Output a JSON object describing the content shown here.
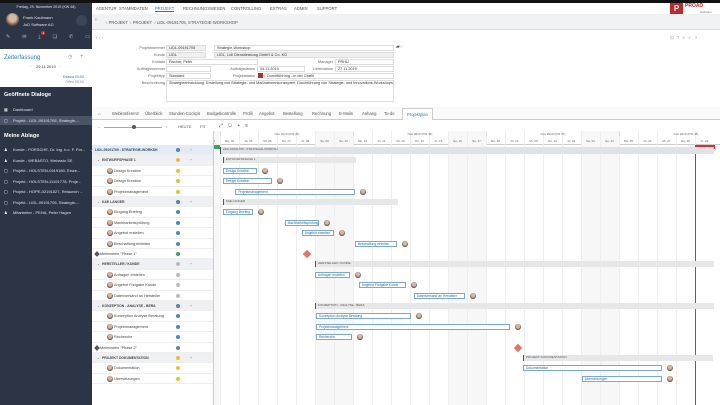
{
  "sidebar": {
    "date": "Freitag, 29. November 2019 (KW 48)",
    "user_name": "Frank Kaufmann",
    "company": "JoD Software AG",
    "badge": "1",
    "icons": [
      "pen-icon",
      "mail-icon",
      "download-icon",
      "chat-icon",
      "phone-icon",
      "card-icon"
    ],
    "zeit_title": "Zeiterfassung",
    "zeit_date": "29.11.2019",
    "erfasst": "Erfasst 00:00",
    "offen": "Offen 08:00",
    "dialogs_title": "Geöffnete Dialoge",
    "dialogs": [
      {
        "label": "Dashboard",
        "icon": "grid-icon"
      },
      {
        "label": "Projekt - LIDL-09191705, Strategie-...",
        "icon": "briefcase-icon"
      }
    ],
    "ablage_title": "Meine Ablage",
    "ablage": [
      {
        "label": "Kunde - PORSCHE, Dr. Ing. h.c. F. Por...",
        "icon": "person-icon"
      },
      {
        "label": "Kunde - WEBASTO, Webasto SE",
        "icon": "person-icon"
      },
      {
        "label": "Projekt - HOLSTEN-0419180, Einze...",
        "icon": "briefcase-icon"
      },
      {
        "label": "Projekt - HOLSTEN-11191778, Proje...",
        "icon": "briefcase-icon"
      },
      {
        "label": "Projekt - HOPE-02191827, Relaunch ...",
        "icon": "briefcase-icon"
      },
      {
        "label": "Projekt - LIDL-09191705, Strategie-...",
        "icon": "briefcase-icon"
      },
      {
        "label": "Mitarbeiter - PEHA, Peter Hagen",
        "icon": "person-icon"
      }
    ]
  },
  "nav": {
    "items": [
      "AGENTUR",
      "STAMMDATEN",
      "PROJEKT",
      "RECHNUNGSWESEN",
      "CONTROLLING",
      "EXTRAS",
      "ADMIN",
      "SUPPORT"
    ],
    "active": 2,
    "logo": "PROAD",
    "logo_sub": "Software"
  },
  "breadcrumb": [
    "PROJEKT",
    "PROJEKT",
    "LIDL-09191705, STRATEGIE-WORKSHOP"
  ],
  "form": {
    "projektnummer_label": "Projektnummer",
    "projektnummer": "LIDL-09191705",
    "titel": "Strategie-Workshop",
    "kunde_label": "Kunde",
    "kunde": "LIDL",
    "kunde_name": "LIDL, Lidl Dienstleistung GmbH & Co. KG",
    "kontakt_label": "Kontakt",
    "kontakt": "Fischer, Peter",
    "manager_label": "Manager",
    "manager": "PRHU",
    "auftragsnummer_label": "Auftragsnummer",
    "auftragsnummer": "",
    "auftragsdatum_label": "Auftragsdatum",
    "auftragsdatum": "04.11.2019",
    "lieferdatum_label": "Lieferdatum",
    "lieferdatum": "27.11.2019",
    "projekttyp_label": "Projekttyp",
    "projekttyp": "Standard",
    "projektstatus_label": "Projektstatus",
    "projektstatus": "Durchführung - in der Grafik",
    "status_color": "#c0282d",
    "beschreibung_label": "Beschreibung",
    "beschreibung": "Strategieentwicklung, Erstellung von Strategie- und Maßnahmenkonzepten, Durchführung von Strategie- und Innovations-Workshops"
  },
  "tabs": [
    "Webkonferenz",
    "Überblick",
    "Stunden-Cockpit",
    "Budgetkontrolle",
    "Profil",
    "Angebot",
    "Bestellung",
    "Rechnung",
    "E-Mails",
    "Anhang",
    "To-do",
    "Projektplan"
  ],
  "active_tab": 11,
  "gantt_toolbar": {
    "heute": "HEUTE",
    "fit": "FIT"
  },
  "timeline": {
    "weeks": [
      {
        "label": "Nov 2019 (KW 45)",
        "start": 4
      },
      {
        "label": "Nov 2019 (KW 46)",
        "start": 11
      },
      {
        "label": "Nov 2019 (KW 47)",
        "start": 18
      },
      {
        "label": "Nov 2019 (KW 48)",
        "start": 25
      }
    ],
    "days": [
      "So, 03",
      "Mo, 04",
      "Di, 05",
      "Mi, 06",
      "Do, 07",
      "Fr, 08",
      "Sa, 09",
      "So, 10",
      "Mo, 11",
      "Di, 12",
      "Mi, 13",
      "Do, 14",
      "Fr, 15",
      "Sa, 16",
      "So, 17",
      "Mo, 18",
      "Di, 19",
      "Mi, 20",
      "Do, 21",
      "Fr, 22",
      "Sa, 23",
      "So, 24",
      "Mo, 25",
      "Di, 26",
      "Mi, 27",
      "Do, 28",
      "Fr, 29"
    ],
    "start_marker_color": "#3aa655",
    "end_marker_color": "#d9302c"
  },
  "tasks": [
    {
      "name": "LIDL-09191705 - STRATEGIE-WORKSH",
      "type": "project",
      "dot": "#4a86c5",
      "start": 4,
      "days": 26
    },
    {
      "name": "ENTWURFSPHASE 1",
      "type": "group",
      "dot": "#e6c31f",
      "start": 4.15,
      "days": 7
    },
    {
      "name": "Design Kreation",
      "type": "task",
      "dot": "#e6c31f",
      "start": 4.15,
      "days": 1.8
    },
    {
      "name": "Design Kreation",
      "type": "task",
      "dot": "#e6c31f",
      "start": 4.15,
      "days": 2.6
    },
    {
      "name": "Projektmanagement",
      "type": "task",
      "dot": "#e6c31f",
      "start": 4.8,
      "days": 6.3
    },
    {
      "name": "K&E LANGER",
      "type": "group",
      "dot": "#4a86c5",
      "start": 4.15,
      "days": 9.2
    },
    {
      "name": "Eingang Briefing",
      "type": "task",
      "dot": "#4a86c5",
      "start": 4.15,
      "days": 1.6
    },
    {
      "name": "Machbarkeitsprüfung",
      "type": "task",
      "dot": "#4a86c5",
      "start": 7.4,
      "days": 1.8
    },
    {
      "name": "Angebot erstellen",
      "type": "task",
      "dot": "#4a86c5",
      "start": 8.3,
      "days": 1.7
    },
    {
      "name": "Beschaffung einleiten",
      "type": "task",
      "dot": "#4a86c5",
      "start": 11.1,
      "days": 2.2
    },
    {
      "name": "Meilenstein \"Phase 1\"",
      "type": "milestone",
      "dot": "#3aa655",
      "start": 8.6
    },
    {
      "name": "HERSTELLER / KUNDE",
      "type": "group",
      "dot": "#bbbbbb",
      "start": 9,
      "days": 21
    },
    {
      "name": "Anfragen erstellen",
      "type": "task",
      "dot": "#bbbbbb",
      "start": 9,
      "days": 1.85
    },
    {
      "name": "Angebot Freigabe Kunde",
      "type": "task",
      "dot": "#bbbbbb",
      "start": 11.3,
      "days": 2.5
    },
    {
      "name": "Datenversand an Hersteller",
      "type": "task",
      "dot": "#bbbbbb",
      "start": 14.2,
      "days": 2.7
    },
    {
      "name": "KONZEPTION - ANALYSE - BERA",
      "type": "group",
      "dot": "#4a86c5",
      "start": 9,
      "days": 21
    },
    {
      "name": "Konzeption Analyse Beratung",
      "type": "task",
      "dot": "#4a86c5",
      "start": 9.05,
      "days": 5
    },
    {
      "name": "Projektmanagement",
      "type": "task",
      "dot": "#4a86c5",
      "start": 9.05,
      "days": 10.2
    },
    {
      "name": "Recherche",
      "type": "task",
      "dot": "#4a86c5",
      "start": 9.05,
      "days": 1.9
    },
    {
      "name": "Meilenstein \"Phase 2\"",
      "type": "milestone",
      "dot": "#4a86c5",
      "start": 19.7
    },
    {
      "name": "PROJEKT DOKUMENTATION",
      "type": "group",
      "dot": "#e6c31f",
      "start": 19.95,
      "days": 10
    },
    {
      "name": "Dokumentation",
      "type": "task",
      "dot": "#e6c31f",
      "start": 19.95,
      "days": 7.3
    },
    {
      "name": "Übersetzungen",
      "type": "task",
      "dot": "#e6c31f",
      "start": 23.05,
      "days": 4.2
    }
  ]
}
